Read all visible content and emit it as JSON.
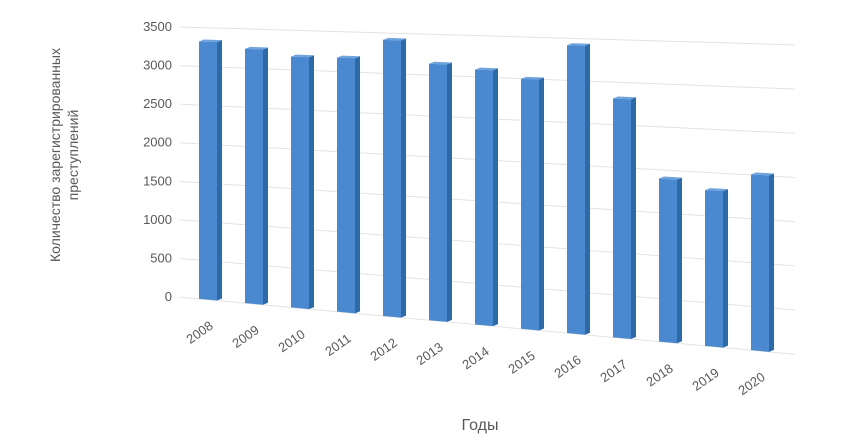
{
  "chart_data": {
    "type": "bar",
    "x_label": "Годы",
    "y_label": "Количество зарегистрированных преступлений",
    "categories": [
      "2008",
      "2009",
      "2010",
      "2011",
      "2012",
      "2013",
      "2014",
      "2015",
      "2016",
      "2017",
      "2018",
      "2019",
      "2020"
    ],
    "values": [
      3320,
      3245,
      3166,
      3175,
      3413,
      3138,
      3087,
      2997,
      3417,
      2807,
      1898,
      1796,
      2006
    ],
    "color": "#4a89cf",
    "ylim": [
      0,
      3500
    ],
    "yticks": [
      0,
      500,
      1000,
      1500,
      2000,
      2500,
      3000,
      3500
    ],
    "grid": true
  }
}
